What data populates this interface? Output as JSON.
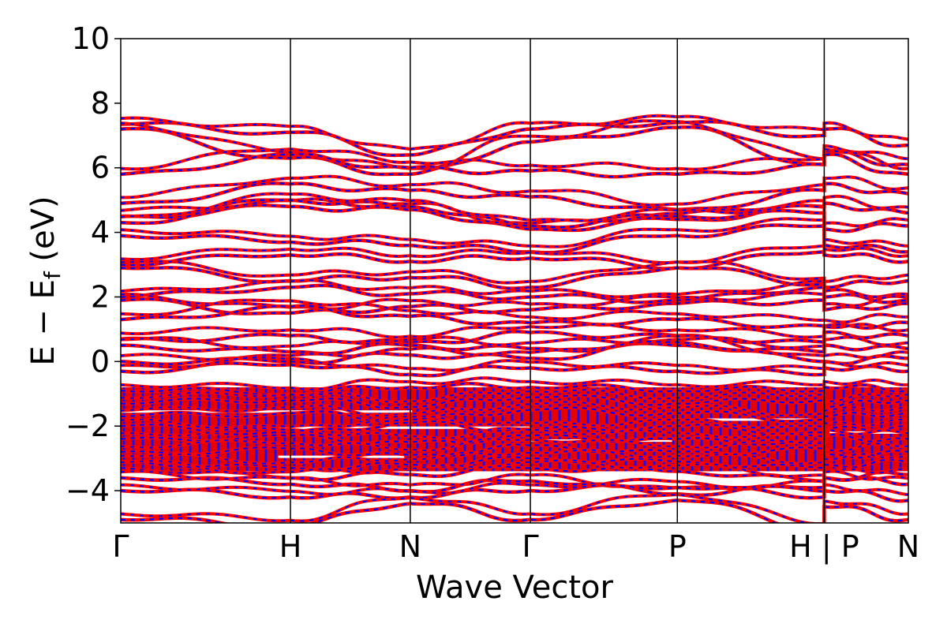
{
  "chart_data": {
    "type": "line",
    "title": "",
    "xlabel": "Wave Vector",
    "ylabel": {
      "main": "E  −  E",
      "subscript": "f",
      "unit": " (eV)"
    },
    "ylim": [
      -5,
      10
    ],
    "yticks": [
      {
        "value": -4,
        "label": "−4"
      },
      {
        "value": -2,
        "label": "−2"
      },
      {
        "value": 0,
        "label": "0"
      },
      {
        "value": 2,
        "label": "2"
      },
      {
        "value": 4,
        "label": "4"
      },
      {
        "value": 6,
        "label": "6"
      },
      {
        "value": 8,
        "label": "8"
      },
      {
        "value": 10,
        "label": "10"
      }
    ],
    "xlim": [
      0,
      1
    ],
    "kpoints": [
      {
        "label": "Γ",
        "x": 0.0
      },
      {
        "label": "H",
        "x": 0.2155
      },
      {
        "label": "N",
        "x": 0.3676
      },
      {
        "label": "Γ",
        "x": 0.5201
      },
      {
        "label": "P",
        "x": 0.7067
      },
      {
        "label": "H | P",
        "x": 0.8932
      },
      {
        "label": "N",
        "x": 1.0
      }
    ],
    "grid": false,
    "series_styles": [
      {
        "name": "",
        "color": "#ff0000",
        "style": "solid"
      },
      {
        "name": "",
        "color": "#0000ff",
        "style": "dashed"
      }
    ],
    "representative_bands": [
      {
        "values": [
          7.35,
          7.1,
          6.4,
          7.2,
          7.4,
          7.0,
          7.2,
          6.7
        ]
      },
      {
        "values": [
          7.2,
          6.3,
          5.8,
          6.8,
          7.25,
          6.1,
          6.5,
          6.1
        ]
      },
      {
        "values": [
          5.8,
          6.4,
          6.0,
          5.9,
          5.8,
          6.1,
          6.4,
          5.8
        ]
      },
      {
        "values": [
          4.9,
          5.5,
          5.3,
          5.1,
          4.7,
          5.3,
          5.5,
          5.2
        ]
      },
      {
        "values": [
          4.5,
          4.8,
          4.7,
          4.1,
          4.4,
          4.8,
          4.9,
          4.6
        ]
      },
      {
        "values": [
          4.3,
          5.0,
          4.8,
          4.2,
          4.5,
          4.6,
          4.1,
          4.2
        ]
      },
      {
        "values": [
          3.9,
          3.7,
          3.6,
          3.4,
          3.9,
          4.2,
          3.6,
          3.4
        ]
      },
      {
        "values": [
          3.0,
          3.3,
          3.1,
          3.2,
          2.9,
          3.4,
          3.3,
          3.1
        ]
      },
      {
        "values": [
          2.9,
          2.5,
          2.6,
          2.3,
          2.9,
          2.4,
          2.3,
          2.5
        ]
      },
      {
        "values": [
          2.0,
          2.3,
          2.1,
          2.0,
          1.9,
          2.3,
          2.0,
          1.9
        ]
      },
      {
        "values": [
          1.9,
          1.5,
          1.7,
          1.6,
          1.8,
          1.9,
          1.6,
          1.8
        ]
      },
      {
        "values": [
          1.3,
          1.7,
          1.4,
          1.2,
          1.3,
          1.1,
          1.1,
          1.2
        ]
      },
      {
        "values": [
          0.7,
          0.8,
          0.6,
          0.9,
          0.8,
          0.6,
          0.9,
          0.8
        ]
      },
      {
        "values": [
          0.5,
          0.3,
          0.5,
          0.4,
          0.5,
          0.3,
          0.5,
          0.4
        ]
      },
      {
        "values": [
          0.0,
          0.0,
          0.2,
          0.1,
          0.6,
          0.0,
          0.0,
          0.1
        ]
      },
      {
        "values": [
          -0.3,
          -0.1,
          -0.4,
          -0.2,
          -0.3,
          -0.4,
          -0.2,
          -0.3
        ]
      },
      {
        "values": [
          -0.9,
          -1.0,
          -0.8,
          -0.8,
          -0.9,
          -0.9,
          -0.8,
          -0.9
        ]
      },
      {
        "values": [
          -1.3,
          -1.2,
          -1.4,
          -1.1,
          -1.3,
          -1.2,
          -1.4,
          -1.2
        ]
      },
      {
        "values": [
          -1.7,
          -1.6,
          -1.8,
          -1.5,
          -1.6,
          -1.8,
          -1.7,
          -1.6
        ]
      },
      {
        "values": [
          -2.0,
          -2.2,
          -1.9,
          -2.1,
          -2.0,
          -2.2,
          -2.1,
          -2.0
        ]
      },
      {
        "values": [
          -2.4,
          -2.3,
          -2.5,
          -2.3,
          -2.4,
          -2.5,
          -2.3,
          -2.4
        ]
      },
      {
        "values": [
          -2.8,
          -2.7,
          -2.9,
          -2.6,
          -2.8,
          -2.7,
          -2.9,
          -2.8
        ]
      },
      {
        "values": [
          -3.1,
          -3.3,
          -3.2,
          -3.0,
          -3.1,
          -3.3,
          -3.2,
          -3.1
        ]
      },
      {
        "values": [
          -3.3,
          -3.6,
          -3.5,
          -3.3,
          -3.4,
          -3.7,
          -3.6,
          -3.5
        ]
      },
      {
        "values": [
          -3.6,
          -3.8,
          -4.0,
          -3.7,
          -4.1,
          -3.9,
          -3.6,
          -3.8
        ]
      },
      {
        "values": [
          -4.0,
          -4.2,
          -4.2,
          -4.0,
          -3.9,
          -4.2,
          -4.0,
          -4.3
        ]
      },
      {
        "values": [
          -4.9,
          -5.1,
          -4.4,
          -4.9,
          -4.3,
          -5.2,
          -4.5,
          -4.9
        ]
      }
    ]
  }
}
